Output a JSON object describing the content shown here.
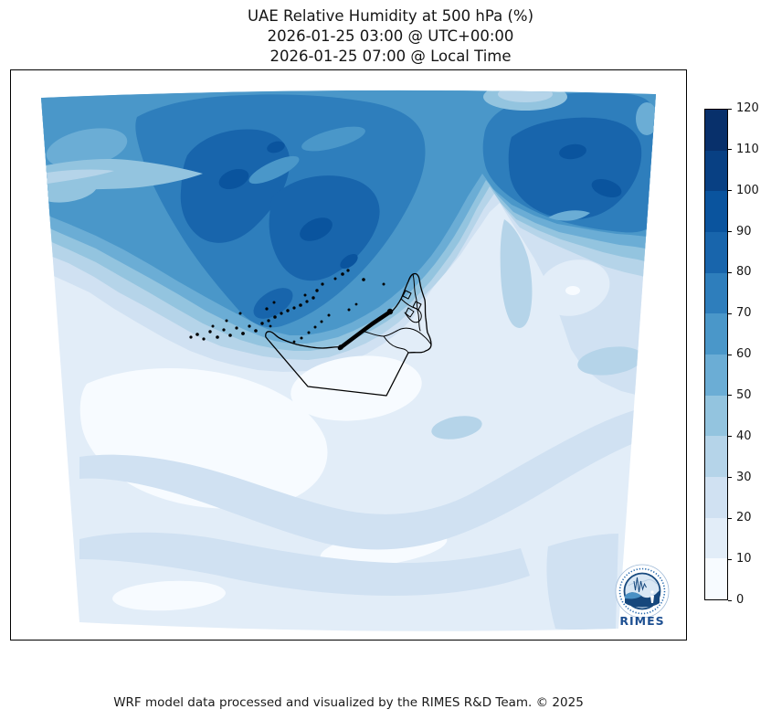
{
  "title": {
    "line1": "UAE Relative Humidity at 500 hPa (%)",
    "line2": "2026-01-25 03:00 @ UTC+00:00",
    "line3": "2026-01-25 07:00 @ Local Time"
  },
  "caption": "WRF model data processed and visualized by the RIMES R&D Team. © 2025",
  "logo": {
    "label": "RIMES"
  },
  "colorbar": {
    "min": 0,
    "max": 120,
    "tick_step": 10,
    "ticks": [
      "0",
      "10",
      "20",
      "30",
      "40",
      "50",
      "60",
      "70",
      "80",
      "90",
      "100",
      "110",
      "120"
    ],
    "colors_low_to_high": [
      "#f7fbff",
      "#e2edf8",
      "#d0e1f2",
      "#b5d4e9",
      "#93c4df",
      "#6badd5",
      "#4a97c9",
      "#2e7ebc",
      "#1865ac",
      "#0a549e",
      "#084083",
      "#08306b"
    ]
  }
}
